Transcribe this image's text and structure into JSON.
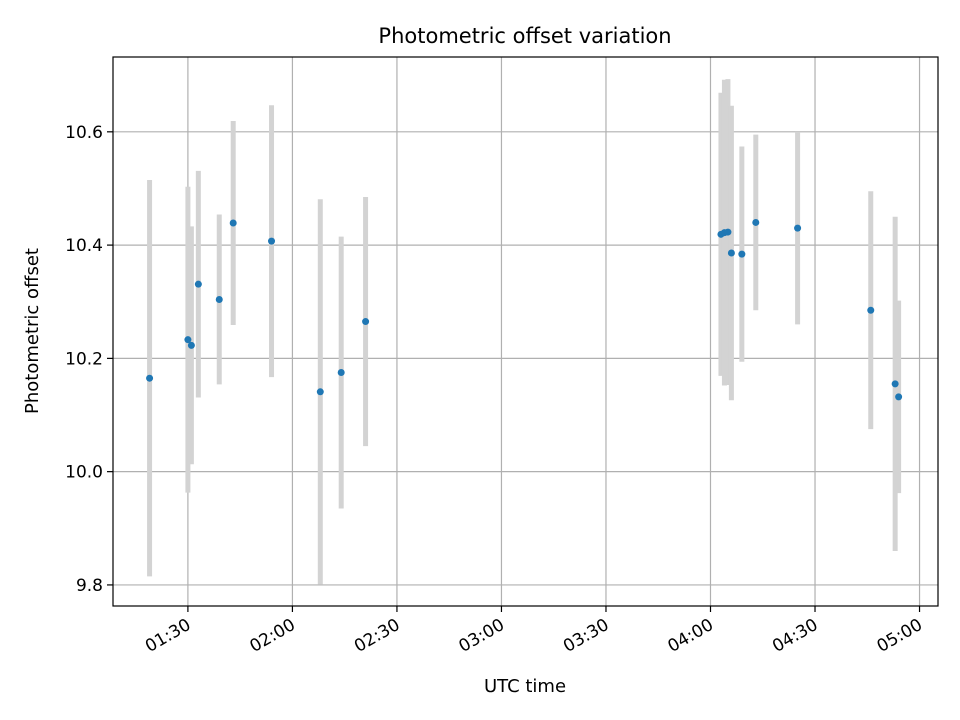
{
  "chart_data": {
    "type": "scatter",
    "title": "Photometric offset variation",
    "xlabel": "UTC time",
    "ylabel": "Photometric offset",
    "x_tick_labels": [
      "01:30",
      "02:00",
      "02:30",
      "03:00",
      "03:30",
      "04:00",
      "04:30",
      "05:00"
    ],
    "x_tick_minutes": [
      90,
      120,
      150,
      180,
      210,
      240,
      270,
      300
    ],
    "y_ticks": [
      9.8,
      10.0,
      10.2,
      10.4,
      10.6
    ],
    "y_tick_labels": [
      "9.8",
      "10.0",
      "10.2",
      "10.4",
      "10.6"
    ],
    "xlim_minutes": [
      68.5,
      305.3
    ],
    "ylim": [
      9.7628,
      10.7321
    ],
    "grid": true,
    "marker_color": "#1f77b4",
    "errorbar_color": "#d3d3d3",
    "points": [
      {
        "x": "01:19",
        "y": 10.165,
        "yerr": 0.35
      },
      {
        "x": "01:30",
        "y": 10.233,
        "yerr": 0.27
      },
      {
        "x": "01:31",
        "y": 10.223,
        "yerr": 0.21
      },
      {
        "x": "01:33",
        "y": 10.331,
        "yerr": 0.2
      },
      {
        "x": "01:39",
        "y": 10.304,
        "yerr": 0.15
      },
      {
        "x": "01:43",
        "y": 10.439,
        "yerr": 0.18
      },
      {
        "x": "01:54",
        "y": 10.407,
        "yerr": 0.24
      },
      {
        "x": "02:08",
        "y": 10.141,
        "yerr": 0.34
      },
      {
        "x": "02:14",
        "y": 10.175,
        "yerr": 0.24
      },
      {
        "x": "02:21",
        "y": 10.265,
        "yerr": 0.22
      },
      {
        "x": "04:03",
        "y": 10.419,
        "yerr": 0.25
      },
      {
        "x": "04:04",
        "y": 10.422,
        "yerr": 0.27
      },
      {
        "x": "04:05",
        "y": 10.423,
        "yerr": 0.27
      },
      {
        "x": "04:06",
        "y": 10.386,
        "yerr": 0.26
      },
      {
        "x": "04:09",
        "y": 10.384,
        "yerr": 0.19
      },
      {
        "x": "04:13",
        "y": 10.44,
        "yerr": 0.155
      },
      {
        "x": "04:25",
        "y": 10.43,
        "yerr": 0.17
      },
      {
        "x": "04:46",
        "y": 10.285,
        "yerr": 0.21
      },
      {
        "x": "04:53",
        "y": 10.155,
        "yerr": 0.295
      },
      {
        "x": "04:54",
        "y": 10.132,
        "yerr": 0.17
      }
    ]
  }
}
